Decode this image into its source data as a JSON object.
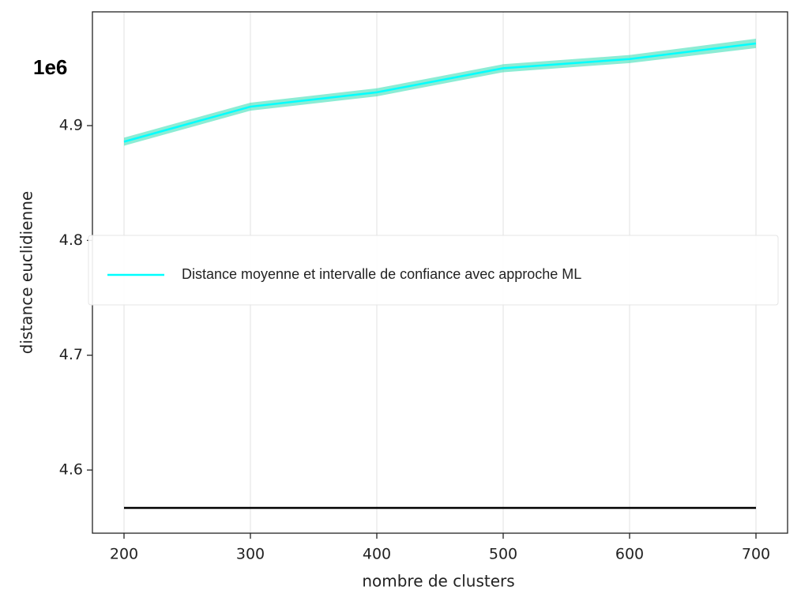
{
  "chart_data": {
    "type": "line",
    "x": [
      200,
      300,
      400,
      500,
      600,
      700
    ],
    "series": [
      {
        "name": "Distance moyenne et intervalle de confiance avec approche ML",
        "color": "#00ffff",
        "band_color": "#40e0b8",
        "values": [
          4.886,
          4.9165,
          4.929,
          4.95,
          4.958,
          4.9716
        ],
        "lower": [
          4.8825,
          4.913,
          4.9255,
          4.9465,
          4.9545,
          4.9675
        ],
        "upper": [
          4.8895,
          4.92,
          4.9325,
          4.9535,
          4.9615,
          4.9757
        ]
      },
      {
        "color": "#000000",
        "values": [
          4.567,
          4.567,
          4.567,
          4.567,
          4.567,
          4.567
        ]
      }
    ],
    "xlim": [
      175,
      725
    ],
    "ylim": [
      4.545,
      4.9991
    ],
    "xticks": [
      200,
      300,
      400,
      500,
      600,
      700
    ],
    "yticks": [
      4.6,
      4.7,
      4.8,
      4.9
    ],
    "xlabel": "nombre de clusters",
    "ylabel": "distance euclidienne",
    "offset_label": "1e6",
    "grid": "x",
    "legend": "center"
  }
}
